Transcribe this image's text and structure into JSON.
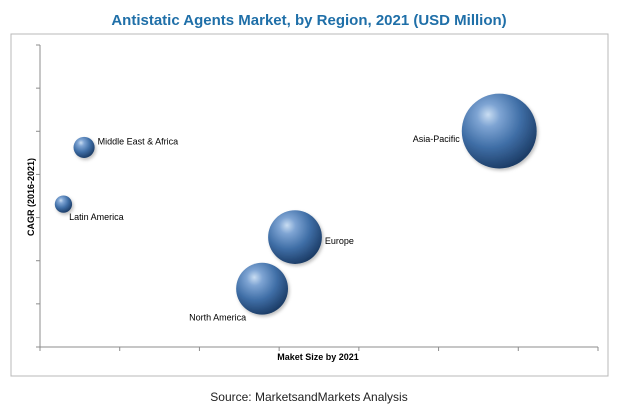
{
  "chart_data": {
    "type": "scatter",
    "title": "Antistatic Agents Market, by Region, 2021 (USD Million)",
    "xlabel": "Maket Size by 2021",
    "ylabel": "CAGR (2016-2021)",
    "grid": false,
    "x_tick_labels": false,
    "y_tick_labels": false,
    "xlim": [
      0,
      100
    ],
    "ylim": [
      0,
      100
    ],
    "series": [
      {
        "points": [
          {
            "label": "Middle East & Africa",
            "x": 7.9,
            "y": 66.1,
            "size": 1.1,
            "label_position": "right"
          },
          {
            "label": "Latin America",
            "x": 4.2,
            "y": 47.3,
            "size": 0.9,
            "label_position": "below-right"
          },
          {
            "label": "Asia-Pacific",
            "x": 82.3,
            "y": 71.5,
            "size": 3.9,
            "label_position": "left"
          },
          {
            "label": "Europe",
            "x": 45.7,
            "y": 36.4,
            "size": 2.8,
            "label_position": "right"
          },
          {
            "label": "North America",
            "x": 39.8,
            "y": 19.3,
            "size": 2.7,
            "label_position": "below-left"
          }
        ]
      }
    ],
    "bubble_color": "#3f6ea6"
  },
  "footer": {
    "source": "Source: MarketsandMarkets Analysis"
  }
}
